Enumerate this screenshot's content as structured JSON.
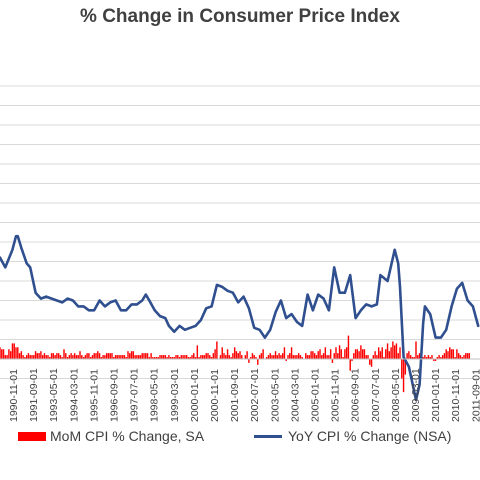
{
  "colors": {
    "mom": "#ff0000",
    "yoy": "#2f4f8f",
    "grid": "#d9d9d9",
    "axis": "#404040"
  },
  "chart_data": {
    "type": "bar+line",
    "title": "% Change in Consumer Price Index",
    "xlabel": "",
    "ylabel": "",
    "grid": true,
    "legend_position": "bottom",
    "x_tick_labels": [
      "1990-11-01",
      "1991-09-01",
      "1993-05-01",
      "1994-03-01",
      "1995-11-01",
      "1996-09-01",
      "1997-07-01",
      "1998-05-01",
      "1999-03-01",
      "2000-01-01",
      "2000-11-01",
      "2001-09-01",
      "2002-07-01",
      "2003-05-01",
      "2004-03-01",
      "2005-01-01",
      "2005-11-01",
      "2006-09-01",
      "2007-07-01",
      "2008-05-01",
      "2009-03-01",
      "2010-01-01",
      "2010-11-01",
      "2011-09-01"
    ],
    "series": [
      {
        "name": "MoM CPI % Change, SA",
        "type": "bar",
        "x_start": "1990-01",
        "frequency": "monthly",
        "values": [
          0.6,
          0.5,
          0.5,
          0.2,
          0.2,
          0.5,
          0.4,
          0.8,
          0.8,
          0.6,
          0.6,
          0.3,
          0.4,
          0.2,
          0.1,
          0.2,
          0.3,
          0.2,
          0.2,
          0.2,
          0.4,
          0.3,
          0.3,
          0.4,
          0.2,
          0.3,
          0.2,
          0.2,
          0.1,
          0.3,
          0.3,
          0.2,
          0.3,
          0.3,
          0.2,
          0.1,
          0.5,
          0.3,
          0.1,
          0.2,
          0.3,
          0.2,
          0.3,
          0.2,
          0.2,
          0.4,
          0.2,
          0.1,
          0.2,
          0.3,
          0.3,
          0.1,
          0.2,
          0.3,
          0.3,
          0.4,
          0.3,
          0.1,
          0.2,
          0.2,
          0.3,
          0.3,
          0.3,
          0.3,
          0.1,
          0.2,
          0.2,
          0.2,
          0.2,
          0.2,
          0.2,
          0.1,
          0.4,
          0.3,
          0.4,
          0.4,
          0.2,
          0.2,
          0.2,
          0.2,
          0.3,
          0.3,
          0.3,
          0.3,
          0.1,
          0.3,
          0.1,
          0.1,
          0.1,
          0.1,
          0.2,
          0.2,
          0.2,
          0.2,
          0.1,
          0.2,
          0.1,
          0.1,
          0.1,
          0.2,
          0.2,
          0.1,
          0.2,
          0.2,
          0.2,
          0.2,
          0.1,
          0.1,
          0.2,
          0.3,
          0.1,
          0.7,
          0.1,
          0.2,
          0.2,
          0.2,
          0.3,
          0.3,
          0.2,
          0.1,
          0.3,
          0.5,
          0.9,
          0.0,
          0.2,
          0.6,
          0.3,
          0.2,
          0.5,
          0.2,
          0.1,
          0.3,
          0.6,
          0.4,
          0.3,
          0.4,
          0.2,
          0.0,
          0.2,
          0.4,
          -0.2,
          0.1,
          0.3,
          0.2,
          0.1,
          -0.3,
          0.2,
          0.3,
          0.5,
          0.0,
          0.1,
          0.2,
          0.3,
          0.2,
          0.2,
          0.4,
          0.2,
          0.3,
          0.2,
          0.3,
          0.6,
          -0.1,
          0.2,
          0.3,
          0.6,
          0.2,
          0.2,
          0.2,
          0.3,
          0.2,
          0.1,
          0.0,
          0.3,
          0.2,
          0.2,
          0.4,
          0.4,
          0.3,
          0.2,
          0.4,
          0.5,
          0.2,
          0.3,
          0.6,
          0.2,
          0.2,
          0.5,
          -0.2,
          0.3,
          0.6,
          0.3,
          0.7,
          0.5,
          0.1,
          0.5,
          0.6,
          1.2,
          -0.6,
          -0.1,
          0.3,
          0.5,
          0.5,
          0.4,
          0.7,
          0.5,
          0.5,
          0.2,
          0.2,
          -0.3,
          -0.4,
          0.2,
          0.4,
          0.2,
          0.6,
          0.4,
          0.6,
          0.1,
          0.5,
          0.8,
          0.4,
          0.6,
          0.9,
          0.7,
          0.8,
          0.3,
          0.6,
          -1.0,
          -1.7,
          -0.8,
          0.3,
          0.4,
          0.2,
          0.1,
          0.1,
          0.9,
          0.2,
          0.3,
          0.4,
          0.1,
          0.2,
          0.1,
          0.2,
          0.1,
          0.2,
          -0.1,
          -0.1,
          0.1,
          0.2,
          0.1,
          0.2,
          0.3,
          0.5,
          0.4,
          0.6,
          0.5,
          0.5,
          0.1,
          0.5,
          0.3,
          0.2,
          0.1,
          0.2,
          0.3,
          0.3,
          0.3
        ]
      },
      {
        "name": "YoY CPI % Change (NSA)",
        "type": "line",
        "points": [
          [
            "1990-01",
            5.2
          ],
          [
            "1990-04",
            4.7
          ],
          [
            "1990-08",
            5.6
          ],
          [
            "1990-10",
            6.3
          ],
          [
            "1990-11",
            6.3
          ],
          [
            "1991-01",
            5.7
          ],
          [
            "1991-04",
            4.9
          ],
          [
            "1991-06",
            4.7
          ],
          [
            "1991-09",
            3.4
          ],
          [
            "1991-12",
            3.1
          ],
          [
            "1992-03",
            3.2
          ],
          [
            "1992-06",
            3.1
          ],
          [
            "1992-09",
            3.0
          ],
          [
            "1992-12",
            2.9
          ],
          [
            "1993-03",
            3.1
          ],
          [
            "1993-06",
            3.0
          ],
          [
            "1993-09",
            2.7
          ],
          [
            "1993-12",
            2.7
          ],
          [
            "1994-03",
            2.5
          ],
          [
            "1994-06",
            2.5
          ],
          [
            "1994-09",
            3.0
          ],
          [
            "1994-12",
            2.7
          ],
          [
            "1995-03",
            2.9
          ],
          [
            "1995-06",
            3.0
          ],
          [
            "1995-09",
            2.5
          ],
          [
            "1995-12",
            2.5
          ],
          [
            "1996-03",
            2.8
          ],
          [
            "1996-06",
            2.8
          ],
          [
            "1996-09",
            3.0
          ],
          [
            "1996-11",
            3.3
          ],
          [
            "1997-01",
            3.0
          ],
          [
            "1997-04",
            2.5
          ],
          [
            "1997-07",
            2.2
          ],
          [
            "1997-10",
            2.1
          ],
          [
            "1997-12",
            1.7
          ],
          [
            "1998-03",
            1.4
          ],
          [
            "1998-06",
            1.7
          ],
          [
            "1998-09",
            1.5
          ],
          [
            "1998-12",
            1.6
          ],
          [
            "1999-03",
            1.7
          ],
          [
            "1999-06",
            2.0
          ],
          [
            "1999-09",
            2.6
          ],
          [
            "1999-12",
            2.7
          ],
          [
            "2000-03",
            3.8
          ],
          [
            "2000-06",
            3.7
          ],
          [
            "2000-09",
            3.5
          ],
          [
            "2000-12",
            3.4
          ],
          [
            "2001-03",
            2.9
          ],
          [
            "2001-06",
            3.2
          ],
          [
            "2001-09",
            2.6
          ],
          [
            "2001-12",
            1.6
          ],
          [
            "2002-03",
            1.5
          ],
          [
            "2002-06",
            1.1
          ],
          [
            "2002-09",
            1.5
          ],
          [
            "2002-12",
            2.4
          ],
          [
            "2003-03",
            3.0
          ],
          [
            "2003-06",
            2.1
          ],
          [
            "2003-09",
            2.3
          ],
          [
            "2003-12",
            1.9
          ],
          [
            "2004-03",
            1.7
          ],
          [
            "2004-06",
            3.3
          ],
          [
            "2004-09",
            2.5
          ],
          [
            "2004-12",
            3.3
          ],
          [
            "2005-03",
            3.1
          ],
          [
            "2005-06",
            2.5
          ],
          [
            "2005-09",
            4.7
          ],
          [
            "2005-12",
            3.4
          ],
          [
            "2006-03",
            3.4
          ],
          [
            "2006-06",
            4.3
          ],
          [
            "2006-09",
            2.1
          ],
          [
            "2006-12",
            2.5
          ],
          [
            "2007-03",
            2.8
          ],
          [
            "2007-06",
            2.7
          ],
          [
            "2007-09",
            2.8
          ],
          [
            "2007-11",
            4.3
          ],
          [
            "2008-03",
            4.0
          ],
          [
            "2008-07",
            5.6
          ],
          [
            "2008-09",
            4.9
          ],
          [
            "2008-10",
            3.7
          ],
          [
            "2008-12",
            0.1
          ],
          [
            "2009-03",
            -0.4
          ],
          [
            "2009-07",
            -2.1
          ],
          [
            "2009-09",
            -1.3
          ],
          [
            "2009-11",
            1.8
          ],
          [
            "2009-12",
            2.7
          ],
          [
            "2010-03",
            2.3
          ],
          [
            "2010-06",
            1.1
          ],
          [
            "2010-09",
            1.1
          ],
          [
            "2010-12",
            1.5
          ],
          [
            "2011-03",
            2.7
          ],
          [
            "2011-06",
            3.6
          ],
          [
            "2011-09",
            3.9
          ],
          [
            "2011-12",
            3.0
          ],
          [
            "2012-03",
            2.7
          ],
          [
            "2012-06",
            1.7
          ]
        ]
      }
    ]
  },
  "legend": {
    "mom_label": "MoM CPI % Change, SA",
    "yoy_label": "YoY CPI % Change (NSA)"
  }
}
